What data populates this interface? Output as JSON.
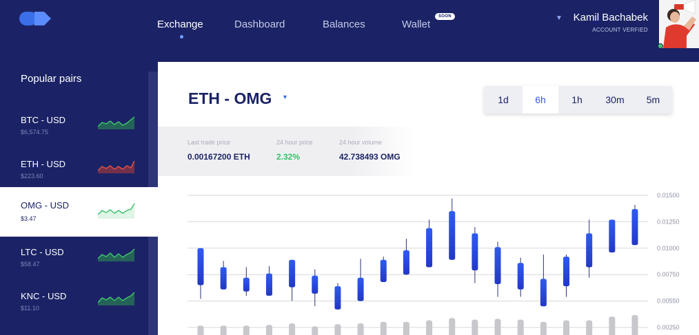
{
  "header": {
    "nav": [
      {
        "label": "Exchange",
        "active": true
      },
      {
        "label": "Dashboard",
        "active": false
      },
      {
        "label": "Balances",
        "active": false
      },
      {
        "label": "Wallet",
        "active": false,
        "badge": "SOON"
      }
    ],
    "user": {
      "name": "Kamil Bachabek",
      "status": "ACCOUNT VERFIED"
    }
  },
  "sidebar": {
    "title": "Popular pairs",
    "pairs": [
      {
        "name": "BTC - USD",
        "price": "$6,574.75",
        "trend": "up",
        "spark_color": "#2f9a5b"
      },
      {
        "name": "ETH - USD",
        "price": "$223.60",
        "trend": "down",
        "spark_color": "#c2443e"
      },
      {
        "name": "OMG - USD",
        "price": "$3.47",
        "trend": "up",
        "active": true,
        "spark_color": "#37c06a"
      },
      {
        "name": "LTC - USD",
        "price": "$58.47",
        "trend": "up",
        "spark_color": "#2f9a5b"
      },
      {
        "name": "KNC - USD",
        "price": "$11.10",
        "trend": "up",
        "spark_color": "#2f9a5b"
      }
    ]
  },
  "main": {
    "pair": "ETH - OMG",
    "timeframes": [
      {
        "label": "1d",
        "active": false
      },
      {
        "label": "6h",
        "active": true
      },
      {
        "label": "1h",
        "active": false
      },
      {
        "label": "30m",
        "active": false
      },
      {
        "label": "5m",
        "active": false
      }
    ],
    "stats": [
      {
        "label": "Last trade price",
        "value": "0.00167200 ETH"
      },
      {
        "label": "24 hour price",
        "value": "2.32%"
      },
      {
        "label": "24 hour volume",
        "value": "42.738493 OMG"
      }
    ]
  },
  "colors": {
    "navy": "#1b2366",
    "accent": "#3a57e8",
    "positive": "#37c06a",
    "negative": "#c2443e"
  },
  "chart_data": {
    "type": "candlestick",
    "y_ticks": [
      "0.01500",
      "0.01250",
      "0.01000",
      "0.00750",
      "0.00550",
      "0.00250"
    ],
    "ylim": [
      0.0025,
      0.015
    ],
    "grid": true,
    "candles": [
      {
        "high": 0.01,
        "open": 0.01,
        "close": 0.0065,
        "low": 0.0052
      },
      {
        "high": 0.0088,
        "open": 0.0082,
        "close": 0.0061,
        "low": 0.0061
      },
      {
        "high": 0.0082,
        "open": 0.0072,
        "close": 0.0059,
        "low": 0.0055
      },
      {
        "high": 0.0083,
        "open": 0.0076,
        "close": 0.0055,
        "low": 0.0055
      },
      {
        "high": 0.0089,
        "open": 0.0089,
        "close": 0.0063,
        "low": 0.005
      },
      {
        "high": 0.008,
        "open": 0.0074,
        "close": 0.0057,
        "low": 0.0045
      },
      {
        "high": 0.0067,
        "open": 0.0064,
        "close": 0.0042,
        "low": 0.0042
      },
      {
        "high": 0.009,
        "open": 0.0072,
        "close": 0.005,
        "low": 0.005
      },
      {
        "high": 0.0092,
        "open": 0.0089,
        "close": 0.0068,
        "low": 0.0068
      },
      {
        "high": 0.0109,
        "open": 0.0098,
        "close": 0.0075,
        "low": 0.0075
      },
      {
        "high": 0.0127,
        "open": 0.0119,
        "close": 0.0082,
        "low": 0.0082
      },
      {
        "high": 0.0147,
        "open": 0.0135,
        "close": 0.0089,
        "low": 0.0089
      },
      {
        "high": 0.012,
        "open": 0.0114,
        "close": 0.0079,
        "low": 0.0067
      },
      {
        "high": 0.0106,
        "open": 0.0101,
        "close": 0.0066,
        "low": 0.0054
      },
      {
        "high": 0.0091,
        "open": 0.0086,
        "close": 0.0061,
        "low": 0.0054
      },
      {
        "high": 0.0094,
        "open": 0.0071,
        "close": 0.0045,
        "low": 0.0045
      },
      {
        "high": 0.0094,
        "open": 0.0092,
        "close": 0.0064,
        "low": 0.0054
      },
      {
        "high": 0.0127,
        "open": 0.0114,
        "close": 0.0082,
        "low": 0.0072
      },
      {
        "high": 0.0127,
        "open": 0.0127,
        "close": 0.0096,
        "low": 0.0096
      },
      {
        "high": 0.0141,
        "open": 0.0137,
        "close": 0.0103,
        "low": 0.0103
      }
    ],
    "volumes": [
      0.3,
      0.3,
      0.3,
      0.35,
      0.45,
      0.25,
      0.4,
      0.45,
      0.55,
      0.55,
      0.65,
      0.8,
      0.7,
      0.75,
      0.7,
      0.55,
      0.65,
      0.65,
      0.9,
      1.0
    ]
  }
}
